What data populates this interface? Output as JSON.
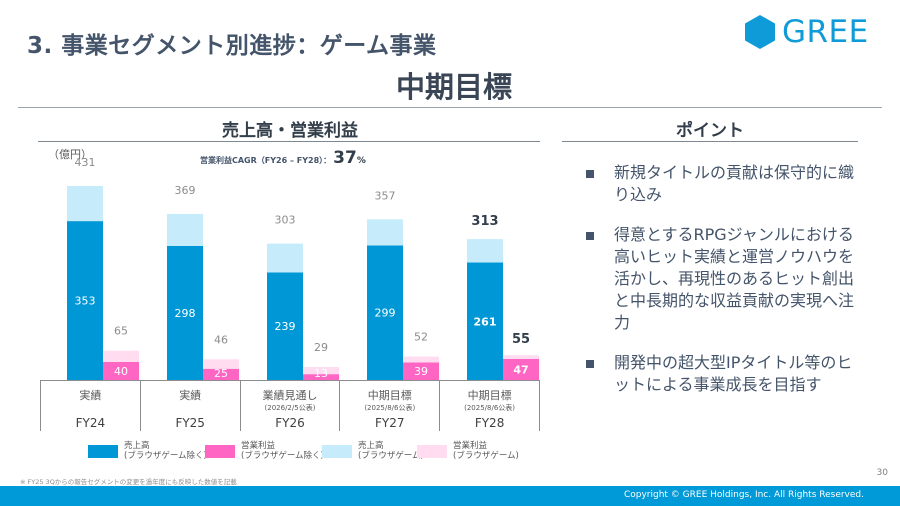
{
  "header": {
    "title": "3. 事業セグメント別進捗：ゲーム事業",
    "subtitle": "中期目標",
    "logo_text": "GREE"
  },
  "left_section": {
    "heading": "売上高・営業利益",
    "unit": "（億円）",
    "cagr_label": "営業利益CAGR（FY26 – FY28）：",
    "cagr_value": "37",
    "cagr_unit": "%"
  },
  "right_section": {
    "heading": "ポイント",
    "points": [
      "新規タイトルの貢献は保守的に織り込み",
      "得意とするRPGジャンルにおける高いヒット実績と運営ノウハウを活かし、再現性のあるヒット創出と中長期的な収益貢献の実現へ注力",
      "開発中の超大型IPタイトル等のヒットによる事業成長を目指す"
    ]
  },
  "periods": [
    {
      "label": "実績",
      "note": "",
      "fy": "FY24"
    },
    {
      "label": "実績",
      "note": "",
      "fy": "FY25"
    },
    {
      "label": "業績見通し",
      "note": "(2026/2/5公表)",
      "fy": "FY26"
    },
    {
      "label": "中期目標",
      "note": "(2025/8/6公表)",
      "fy": "FY27"
    },
    {
      "label": "中期目標",
      "note": "(2025/8/6公表)",
      "fy": "FY28"
    }
  ],
  "legend": [
    {
      "line1": "売上高",
      "line2": "(ブラウザゲーム除く)",
      "color": "#0097d6"
    },
    {
      "line1": "営業利益",
      "line2": "(ブラウザゲーム除く)",
      "color": "#ff66c4"
    },
    {
      "line1": "売上高",
      "line2": "(ブラウザゲーム)",
      "color": "#c6ecfb"
    },
    {
      "line1": "営業利益",
      "line2": "(ブラウザゲーム)",
      "color": "#ffdcf0"
    }
  ],
  "chart_data": {
    "type": "bar",
    "stacked": true,
    "title": "売上高・営業利益",
    "ylabel": "億円",
    "categories": [
      "FY24",
      "FY25",
      "FY26",
      "FY27",
      "FY28"
    ],
    "ylim": [
      0,
      431
    ],
    "series": [
      {
        "name": "売上高(ブラウザゲーム除く)",
        "group": "revenue",
        "values": [
          353,
          298,
          239,
          299,
          261
        ],
        "color": "#0097d6"
      },
      {
        "name": "売上高(ブラウザゲーム)",
        "group": "revenue",
        "values": [
          78,
          71,
          64,
          58,
          52
        ],
        "color": "#c6ecfb"
      },
      {
        "name": "営業利益(ブラウザゲーム除く)",
        "group": "profit",
        "values": [
          40,
          25,
          13,
          39,
          47
        ],
        "color": "#ff66c4"
      },
      {
        "name": "営業利益(ブラウザゲーム)",
        "group": "profit",
        "values": [
          25,
          21,
          16,
          13,
          8
        ],
        "color": "#ffdcf0"
      }
    ],
    "totals": {
      "revenue": [
        431,
        369,
        303,
        357,
        313
      ],
      "profit": [
        65,
        46,
        29,
        52,
        55
      ]
    },
    "highlight_index": 4,
    "annotation": "営業利益CAGR（FY26 – FY28）：37%"
  },
  "footer": {
    "footnote": "※ FY25 3Qからの報告セグメントの変更を過年度にも反映した数値を記載",
    "page_number": "30",
    "copyright": "Copyright © GREE Holdings, Inc. All Rights Reserved."
  }
}
